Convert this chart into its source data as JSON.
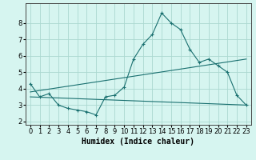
{
  "xlabel": "Humidex (Indice chaleur)",
  "xlim": [
    -0.5,
    23.5
  ],
  "ylim": [
    1.8,
    9.2
  ],
  "yticks": [
    2,
    3,
    4,
    5,
    6,
    7,
    8
  ],
  "xticks": [
    0,
    1,
    2,
    3,
    4,
    5,
    6,
    7,
    8,
    9,
    10,
    11,
    12,
    13,
    14,
    15,
    16,
    17,
    18,
    19,
    20,
    21,
    22,
    23
  ],
  "bg_color": "#d6f5f0",
  "grid_color": "#aad8d0",
  "line_color": "#1a7070",
  "line1_x": [
    0,
    1,
    2,
    3,
    4,
    5,
    6,
    7,
    8,
    9,
    10,
    11,
    12,
    13,
    14,
    15,
    16,
    17,
    18,
    19,
    20,
    21,
    22,
    23
  ],
  "line1_y": [
    4.3,
    3.5,
    3.7,
    3.0,
    2.8,
    2.7,
    2.6,
    2.4,
    3.5,
    3.6,
    4.1,
    5.8,
    6.7,
    7.3,
    8.6,
    8.0,
    7.6,
    6.4,
    5.6,
    5.8,
    5.4,
    5.0,
    3.6,
    3.0
  ],
  "line2_x": [
    0,
    23
  ],
  "line2_y": [
    3.8,
    5.8
  ],
  "line3_x": [
    0,
    23
  ],
  "line3_y": [
    3.5,
    3.0
  ]
}
